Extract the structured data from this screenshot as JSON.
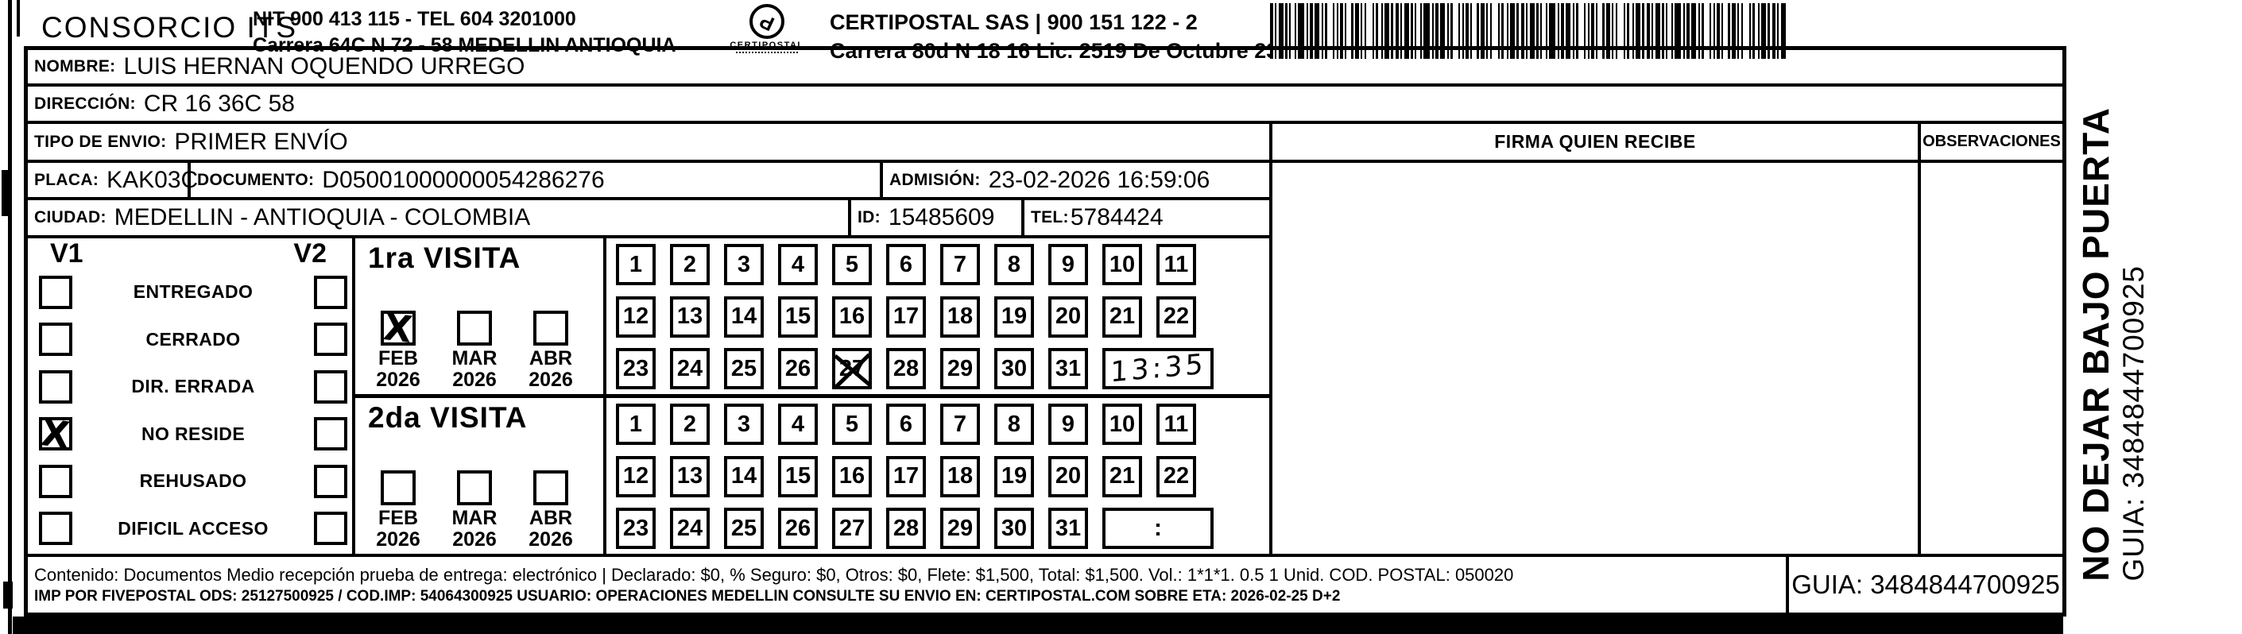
{
  "colors": {
    "ink": "#000000",
    "paper": "#ffffff"
  },
  "header": {
    "consorcio": "CONSORCIO ITS",
    "nit_line1": "NIT 900 413 115 - TEL 604 3201000",
    "nit_line2": "Carrera 64C N 72 - 58 MEDELLIN ANTIOQUIA",
    "logo_caption": "CERTIPOSTAL",
    "certi_line1": "CERTIPOSTAL SAS | 900 151 122 - 2",
    "certi_line2": "Carrera 80d N 18 16  Lic. 2519 De Octubre 23 De 2015"
  },
  "fields": {
    "nombre_label": "NOMBRE:",
    "nombre": "LUIS HERNAN OQUENDO URREGO",
    "direccion_label": "DIRECCIÓN:",
    "direccion": "CR 16 36C 58",
    "tipo_envio_label": "TIPO DE ENVIO:",
    "tipo_envio": "PRIMER ENVÍO",
    "placa_label": "PLACA:",
    "placa": "KAK03C",
    "documento_label": "DOCUMENTO:",
    "documento": "D05001000000054286276",
    "admision_label": "ADMISIÓN:",
    "admision": "23-02-2026 16:59:06",
    "ciudad_label": "CIUDAD:",
    "ciudad": "MEDELLIN - ANTIOQUIA - COLOMBIA",
    "id_label": "ID:",
    "id": "15485609",
    "tel_label": "TEL:",
    "tel": "5784424"
  },
  "signature": {
    "firma_header": "FIRMA QUIEN RECIBE",
    "observaciones_header": "OBSERVACIONES"
  },
  "status": {
    "v1_header": "V1",
    "v2_header": "V2",
    "items": [
      {
        "label": "ENTREGADO",
        "v1_checked": false,
        "v2_checked": false
      },
      {
        "label": "CERRADO",
        "v1_checked": false,
        "v2_checked": false
      },
      {
        "label": "DIR. ERRADA",
        "v1_checked": false,
        "v2_checked": false
      },
      {
        "label": "NO RESIDE",
        "v1_checked": true,
        "v2_checked": false
      },
      {
        "label": "REHUSADO",
        "v1_checked": false,
        "v2_checked": false
      },
      {
        "label": "DIFICIL ACCESO",
        "v1_checked": false,
        "v2_checked": false
      }
    ]
  },
  "visits": [
    {
      "title": "1ra VISITA",
      "months": [
        {
          "label1": "FEB",
          "label2": "2026",
          "checked": true
        },
        {
          "label1": "MAR",
          "label2": "2026",
          "checked": false
        },
        {
          "label1": "ABR",
          "label2": "2026",
          "checked": false
        }
      ],
      "days_rows": [
        [
          "1",
          "2",
          "3",
          "4",
          "5",
          "6",
          "7",
          "8",
          "9",
          "10",
          "11"
        ],
        [
          "12",
          "13",
          "14",
          "15",
          "16",
          "17",
          "18",
          "19",
          "20",
          "21",
          "22"
        ],
        [
          "23",
          "24",
          "25",
          "26",
          "27",
          "28",
          "29",
          "30",
          "31"
        ]
      ],
      "crossed_day": "27",
      "time_value": "13:35",
      "time_handwritten": true
    },
    {
      "title": "2da VISITA",
      "months": [
        {
          "label1": "FEB",
          "label2": "2026",
          "checked": false
        },
        {
          "label1": "MAR",
          "label2": "2026",
          "checked": false
        },
        {
          "label1": "ABR",
          "label2": "2026",
          "checked": false
        }
      ],
      "days_rows": [
        [
          "1",
          "2",
          "3",
          "4",
          "5",
          "6",
          "7",
          "8",
          "9",
          "10",
          "11"
        ],
        [
          "12",
          "13",
          "14",
          "15",
          "16",
          "17",
          "18",
          "19",
          "20",
          "21",
          "22"
        ],
        [
          "23",
          "24",
          "25",
          "26",
          "27",
          "28",
          "29",
          "30",
          "31"
        ]
      ],
      "crossed_day": null,
      "time_value": ":",
      "time_handwritten": false
    }
  ],
  "sidebar": {
    "warning": "NO DEJAR BAJO PUERTA",
    "guia": "GUIA: 3484844700925"
  },
  "footer": {
    "line1": "Contenido: Documentos Medio recepción prueba de entrega: electrónico | Declarado: $0, % Seguro: $0, Otros: $0, Flete: $1,500, Total: $1,500. Vol.: 1*1*1. 0.5  1 Unid. COD. POSTAL: 050020",
    "line2": "IMP POR FIVEPOSTAL ODS: 25127500925 / COD.IMP: 54064300925 USUARIO: OPERACIONES MEDELLIN CONSULTE SU ENVIO EN: CERTIPOSTAL.COM SOBRE ETA: 2026-02-25 D+2",
    "guia_box": "GUIA: 3484844700925"
  },
  "handwriting": {
    "check_mark": "X"
  }
}
